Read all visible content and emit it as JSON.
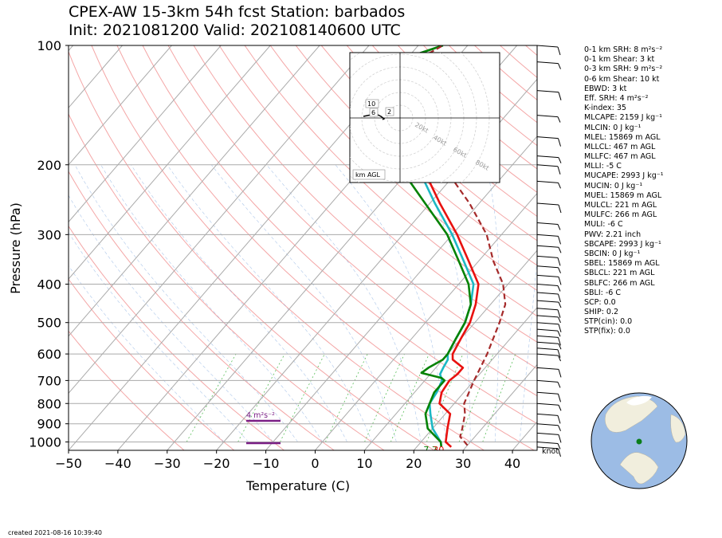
{
  "title_line1": "CPEX-AW 15-3km  54h fcst  Station: barbados",
  "title_line2": "Init: 2021081200  Valid: 202108140600 UTC",
  "created": "created 2021-08-16 10:39:40",
  "stats": [
    "0-1 km SRH: 8 m²s⁻²",
    "0-1 km Shear: 3 kt",
    "0-3 km SRH: 9 m²s⁻²",
    "0-6 km Shear: 10 kt",
    "EBWD: 3 kt",
    "Eff. SRH: 4 m²s⁻²",
    "K-index: 35",
    "MLCAPE: 2159 J kg⁻¹",
    "MLCIN: 0 J kg⁻¹",
    "MLEL: 15869 m AGL",
    "MLLCL: 467 m AGL",
    "MLLFC: 467 m AGL",
    "MLLI: -5 C",
    "MUCAPE: 2993 J kg⁻¹",
    "MUCIN: 0 J kg⁻¹",
    "MUEL: 15869 m AGL",
    "MULCL: 221 m AGL",
    "MULFC: 266 m AGL",
    "MULI: -6 C",
    "PWV: 2.21 inch",
    "SBCAPE: 2993 J kg⁻¹",
    "SBCIN: 0 J kg⁻¹",
    "SBEL: 15869 m AGL",
    "SBLCL: 221 m AGL",
    "SBLFC: 266 m AGL",
    "SBLI: -6 C",
    "SCP: 0.0",
    "SHIP: 0.2",
    "STP(cin): 0.0",
    "STP(fix): 0.0"
  ],
  "chart_data": {
    "type": "line",
    "title": "CPEX-AW 15-3km  54h fcst  Station: barbados",
    "xlabel": "Temperature (C)",
    "ylabel": "Pressure (hPa)",
    "xlim": [
      -50,
      45
    ],
    "ylim": [
      1050,
      100
    ],
    "yscale": "log",
    "x_ticks": [
      -50,
      -40,
      -30,
      -20,
      -10,
      0,
      10,
      20,
      30,
      40
    ],
    "y_ticks": [
      100,
      200,
      300,
      400,
      500,
      600,
      700,
      800,
      900,
      1000
    ],
    "grid": true,
    "surface_temp_label": "30",
    "surface_dewpoint_label": "7.7",
    "wind_units_label": "knot",
    "srh_annotation": "4 m²s⁻²",
    "series": [
      {
        "color": "#e8110f",
        "points": [
          [
            27,
            1030
          ],
          [
            25,
            1000
          ],
          [
            23,
            925
          ],
          [
            21,
            850
          ],
          [
            17,
            800
          ],
          [
            15.5,
            750
          ],
          [
            15,
            700
          ],
          [
            15.5,
            675
          ],
          [
            15.5,
            650
          ],
          [
            12,
            620
          ],
          [
            11,
            600
          ],
          [
            10,
            550
          ],
          [
            9,
            500
          ],
          [
            7,
            450
          ],
          [
            4,
            400
          ],
          [
            -2,
            350
          ],
          [
            -9,
            300
          ],
          [
            -18,
            250
          ],
          [
            -24,
            220
          ],
          [
            -30,
            200
          ],
          [
            -38,
            170
          ],
          [
            -44,
            150
          ],
          [
            -50,
            130
          ],
          [
            -55,
            120
          ],
          [
            -52,
            110
          ],
          [
            -45,
            100
          ]
        ]
      },
      {
        "color": "#1db8c4",
        "points": [
          [
            25,
            1030
          ],
          [
            24,
            1000
          ],
          [
            20,
            925
          ],
          [
            17,
            850
          ],
          [
            15,
            800
          ],
          [
            14.5,
            750
          ],
          [
            13.5,
            700
          ],
          [
            12,
            675
          ],
          [
            11.5,
            650
          ],
          [
            11,
            620
          ],
          [
            10,
            600
          ],
          [
            9,
            550
          ],
          [
            8,
            500
          ],
          [
            6,
            450
          ],
          [
            3,
            400
          ],
          [
            -3,
            350
          ],
          [
            -10,
            300
          ],
          [
            -19,
            250
          ],
          [
            -25,
            220
          ],
          [
            -31,
            200
          ],
          [
            -38,
            170
          ],
          [
            -44,
            150
          ],
          [
            -49,
            130
          ],
          [
            -55,
            120
          ],
          [
            -52,
            110
          ],
          [
            -45,
            100
          ]
        ]
      },
      {
        "color": "#048204",
        "points": [
          [
            25,
            1030
          ],
          [
            24,
            1000
          ],
          [
            19,
            925
          ],
          [
            16,
            850
          ],
          [
            15,
            800
          ],
          [
            14,
            750
          ],
          [
            14,
            700
          ],
          [
            13,
            690
          ],
          [
            8,
            670
          ],
          [
            8.5,
            650
          ],
          [
            10,
            620
          ],
          [
            10,
            600
          ],
          [
            9,
            550
          ],
          [
            8,
            500
          ],
          [
            6,
            450
          ],
          [
            2,
            400
          ],
          [
            -4,
            350
          ],
          [
            -11,
            300
          ],
          [
            -21,
            250
          ],
          [
            -28,
            220
          ],
          [
            -33,
            200
          ],
          [
            -40,
            170
          ],
          [
            -45,
            150
          ],
          [
            -50,
            130
          ],
          [
            -56,
            120
          ],
          [
            -52,
            110
          ],
          [
            -45,
            100
          ]
        ]
      },
      {
        "color": "#a52a2a",
        "dashed": true,
        "points": [
          [
            30,
            1020
          ],
          [
            27,
            970
          ],
          [
            26,
            925
          ],
          [
            24,
            850
          ],
          [
            22,
            800
          ],
          [
            20,
            700
          ],
          [
            18,
            600
          ],
          [
            15,
            500
          ],
          [
            13,
            450
          ],
          [
            9,
            400
          ],
          [
            3,
            350
          ],
          [
            -3,
            300
          ],
          [
            -12,
            250
          ],
          [
            -19,
            220
          ],
          [
            -25,
            200
          ],
          [
            -33,
            170
          ],
          [
            -39,
            150
          ],
          [
            -45,
            130
          ],
          [
            -50,
            120
          ],
          [
            -48,
            110
          ],
          [
            -45,
            100
          ]
        ]
      }
    ],
    "hodograph": {
      "title": "km AGL",
      "rings": [
        "20kt",
        "40kt",
        "60kt",
        "80kt"
      ],
      "height_labels": [
        "10",
        "6",
        "2"
      ]
    }
  }
}
